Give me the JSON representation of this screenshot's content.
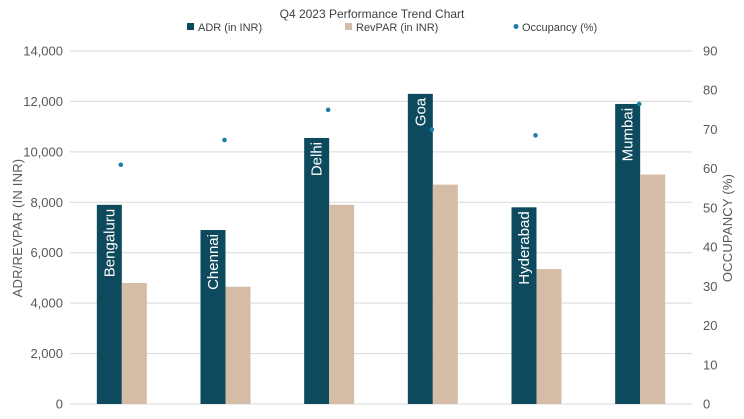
{
  "chart_data": {
    "type": "bar",
    "title": "Q4 2023 Performance Trend Chart",
    "categories": [
      "Bengaluru",
      "Chennai",
      "Delhi",
      "Goa",
      "Hyderabad",
      "Mumbai"
    ],
    "series": [
      {
        "name": "ADR (in INR)",
        "kind": "bar",
        "axis": "left",
        "color": "#0e4a5e",
        "values": [
          7900,
          6900,
          10550,
          12300,
          7800,
          11900
        ]
      },
      {
        "name": "RevPAR (in INR)",
        "kind": "bar",
        "axis": "left",
        "color": "#d5bca6",
        "values": [
          4800,
          4650,
          7900,
          8700,
          5350,
          9100
        ]
      },
      {
        "name": "Occupancy (%)",
        "kind": "scatter",
        "axis": "right",
        "color": "#1f7ea8",
        "values": [
          61,
          67.3,
          75,
          70,
          68.5,
          76.5
        ]
      }
    ],
    "ylabel": "ADR/REVPAR (IN INR)",
    "y2label": "OCCUPANCY (%)",
    "ylim": [
      0,
      14000
    ],
    "y2lim": [
      0,
      90
    ],
    "yticks": [
      "0",
      "2,000",
      "4,000",
      "6,000",
      "8,000",
      "10,000",
      "12,000",
      "14,000"
    ],
    "y2ticks": [
      "0",
      "10",
      "20",
      "30",
      "40",
      "50",
      "60",
      "70",
      "80",
      "90"
    ],
    "grid": true,
    "legend_position": "top"
  }
}
